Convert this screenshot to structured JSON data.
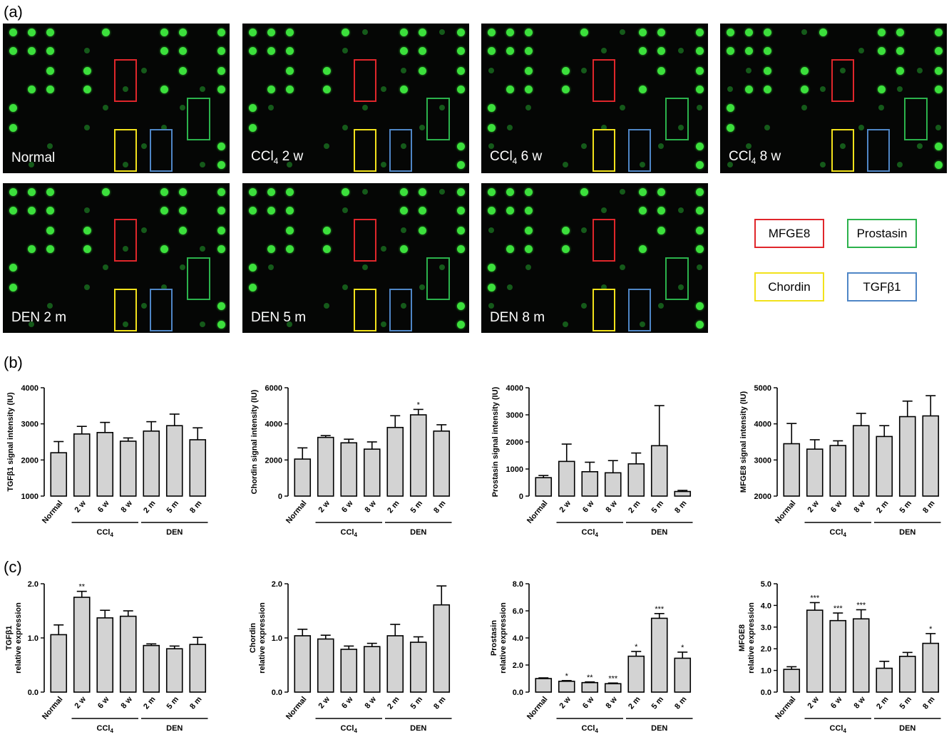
{
  "panel_letters": {
    "a": "(a)",
    "b": "(b)",
    "c": "(c)"
  },
  "colors": {
    "red": "#e0262b",
    "green": "#2bb24c",
    "yellow": "#f2e21b",
    "blue": "#4f86c6",
    "bar_fill": "#d3d3d3",
    "blot_bg": "#050605",
    "spot": "#3ce03c"
  },
  "blots": [
    {
      "label_main": "Normal",
      "label_sub": "",
      "label_rest": ""
    },
    {
      "label_main": "CCl",
      "label_sub": "4",
      "label_rest": " 2 w"
    },
    {
      "label_main": "CCl",
      "label_sub": "4",
      "label_rest": " 6 w"
    },
    {
      "label_main": "CCl",
      "label_sub": "4",
      "label_rest": " 8 w"
    },
    {
      "label_main": "DEN 2 m",
      "label_sub": "",
      "label_rest": ""
    },
    {
      "label_main": "DEN 5 m",
      "label_sub": "",
      "label_rest": ""
    },
    {
      "label_main": "DEN 8 m",
      "label_sub": "",
      "label_rest": ""
    }
  ],
  "legend": {
    "mfge8": "MFGE8",
    "prostasin": "Prostasin",
    "chordin": "Chordin",
    "tgfb1": "TGFβ1"
  },
  "group_labels": {
    "ccl": "CCl",
    "ccl_sub": "4",
    "den": "DEN"
  },
  "chart_data": [
    {
      "panel": "b",
      "type": "bar",
      "categories": [
        "Normal",
        "2 w",
        "6 w",
        "8 w",
        "2 m",
        "5 m",
        "8 m"
      ],
      "ylabel": "TGFβ1 signal intensity (IU)",
      "ylim": [
        1000,
        4000
      ],
      "yticks": [
        1000,
        2000,
        3000,
        4000
      ],
      "tick_decimals": 0,
      "values": [
        2200,
        2720,
        2760,
        2520,
        2800,
        2950,
        2560
      ],
      "errors": [
        310,
        210,
        280,
        90,
        260,
        320,
        330
      ],
      "stars": [
        "",
        "",
        "",
        "",
        "",
        "",
        ""
      ]
    },
    {
      "panel": "b",
      "type": "bar",
      "categories": [
        "Normal",
        "2 w",
        "6 w",
        "8 w",
        "2 m",
        "5 m",
        "8 m"
      ],
      "ylabel": "Chordin signal intensity (IU)",
      "ylim": [
        0,
        6000
      ],
      "yticks": [
        0,
        2000,
        4000,
        6000
      ],
      "tick_decimals": 0,
      "values": [
        2050,
        3250,
        2950,
        2600,
        3800,
        4500,
        3600
      ],
      "errors": [
        620,
        100,
        200,
        400,
        650,
        300,
        350
      ],
      "stars": [
        "",
        "",
        "",
        "",
        "",
        "*",
        ""
      ]
    },
    {
      "panel": "b",
      "type": "bar",
      "categories": [
        "Normal",
        "2 w",
        "6 w",
        "8 w",
        "2 m",
        "5 m",
        "8 m"
      ],
      "ylabel": "Prostasin signal intensity (IU)",
      "ylim": [
        0,
        4000
      ],
      "yticks": [
        0,
        1000,
        2000,
        3000,
        4000
      ],
      "tick_decimals": 0,
      "values": [
        680,
        1280,
        900,
        860,
        1190,
        1860,
        170
      ],
      "errors": [
        80,
        640,
        350,
        450,
        400,
        1480,
        40
      ],
      "stars": [
        "",
        "",
        "",
        "",
        "",
        "",
        ""
      ]
    },
    {
      "panel": "b",
      "type": "bar",
      "categories": [
        "Normal",
        "2 w",
        "6 w",
        "8 w",
        "2 m",
        "5 m",
        "8 m"
      ],
      "ylabel": "MFGE8 signal intensity (IU)",
      "ylim": [
        2000,
        5000
      ],
      "yticks": [
        2000,
        3000,
        4000,
        5000
      ],
      "tick_decimals": 0,
      "values": [
        3450,
        3300,
        3400,
        3950,
        3650,
        4200,
        4220
      ],
      "errors": [
        560,
        260,
        130,
        340,
        300,
        430,
        560
      ],
      "stars": [
        "",
        "",
        "",
        "",
        "",
        "",
        ""
      ]
    },
    {
      "panel": "c",
      "type": "bar",
      "categories": [
        "Normal",
        "2 w",
        "6 w",
        "8 w",
        "2 m",
        "5 m",
        "8 m"
      ],
      "ylabel": "TGFβ1",
      "ylabel2": "relative expression",
      "ylim": [
        0,
        2
      ],
      "yticks": [
        0,
        1,
        2
      ],
      "tick_decimals": 1,
      "values": [
        1.06,
        1.75,
        1.37,
        1.4,
        0.86,
        0.8,
        0.88
      ],
      "errors": [
        0.18,
        0.11,
        0.14,
        0.1,
        0.03,
        0.05,
        0.13
      ],
      "stars": [
        "",
        "**",
        "",
        "",
        "",
        "",
        ""
      ]
    },
    {
      "panel": "c",
      "type": "bar",
      "categories": [
        "Normal",
        "2 w",
        "6 w",
        "8 w",
        "2 m",
        "5 m",
        "8 m"
      ],
      "ylabel": "Chordin",
      "ylabel2": "relative expression",
      "ylim": [
        0,
        2
      ],
      "yticks": [
        0,
        1,
        2
      ],
      "tick_decimals": 1,
      "values": [
        1.04,
        0.98,
        0.79,
        0.84,
        1.04,
        0.92,
        1.61
      ],
      "errors": [
        0.12,
        0.07,
        0.06,
        0.06,
        0.21,
        0.1,
        0.35
      ],
      "stars": [
        "",
        "",
        "",
        "",
        "",
        "",
        ""
      ]
    },
    {
      "panel": "c",
      "type": "bar",
      "categories": [
        "Normal",
        "2 w",
        "6 w",
        "8 w",
        "2 m",
        "5 m",
        "8 m"
      ],
      "ylabel": "Prostasin",
      "ylabel2": "relative expression",
      "ylim": [
        0,
        8
      ],
      "yticks": [
        0,
        2,
        4,
        6,
        8
      ],
      "tick_decimals": 1,
      "values": [
        1.0,
        0.8,
        0.7,
        0.62,
        2.65,
        5.45,
        2.5
      ],
      "errors": [
        0.05,
        0.05,
        0.05,
        0.05,
        0.35,
        0.35,
        0.45
      ],
      "stars": [
        "",
        "*",
        "**",
        "***",
        "*",
        "***",
        "*"
      ]
    },
    {
      "panel": "c",
      "type": "bar",
      "categories": [
        "Normal",
        "2 w",
        "6 w",
        "8 w",
        "2 m",
        "5 m",
        "8 m"
      ],
      "ylabel": "MFGE8",
      "ylabel2": "relative expression",
      "ylim": [
        0,
        5
      ],
      "yticks": [
        0,
        1,
        2,
        3,
        4,
        5
      ],
      "tick_decimals": 1,
      "values": [
        1.05,
        3.78,
        3.3,
        3.38,
        1.1,
        1.65,
        2.25
      ],
      "errors": [
        0.12,
        0.35,
        0.35,
        0.42,
        0.32,
        0.18,
        0.45
      ],
      "stars": [
        "",
        "***",
        "***",
        "***",
        "",
        "",
        "*"
      ]
    }
  ]
}
